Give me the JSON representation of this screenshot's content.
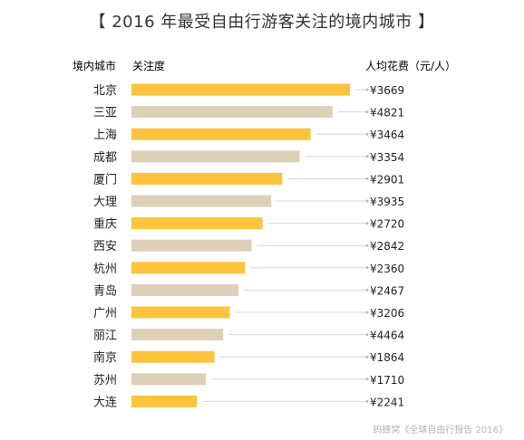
{
  "colors": {
    "primary_bar": "#FDC33D",
    "secondary_bar": "#DDD0B6",
    "leader_line": "#D6D6D6",
    "text": "#222222",
    "subtle_text": "#B5B5B5"
  },
  "chart_data": {
    "type": "bar",
    "orientation": "horizontal",
    "title": "【 2016 年最受自由行游客关注的境内城市 】",
    "category_header": "境内城市",
    "value_header": "关注度",
    "extra_header": "人均花费（元/人）",
    "categories": [
      "北京",
      "三亚",
      "上海",
      "成都",
      "厦门",
      "大理",
      "重庆",
      "西安",
      "杭州",
      "青岛",
      "广州",
      "丽江",
      "南京",
      "苏州",
      "大连"
    ],
    "values": [
      100,
      92,
      82,
      77,
      69,
      64,
      60,
      55,
      52,
      49,
      45,
      42,
      38,
      34,
      30
    ],
    "spending": [
      "¥3669",
      "¥4821",
      "¥3464",
      "¥3354",
      "¥2901",
      "¥3935",
      "¥2720",
      "¥2842",
      "¥2360",
      "¥2467",
      "¥3206",
      "¥4464",
      "¥1864",
      "¥1710",
      "¥2241"
    ],
    "color_pattern": [
      "primary",
      "secondary",
      "primary",
      "secondary",
      "primary",
      "secondary",
      "primary",
      "secondary",
      "primary",
      "secondary",
      "primary",
      "secondary",
      "primary",
      "secondary",
      "primary"
    ],
    "xlim": [
      0,
      100
    ],
    "grid": false,
    "legend": "none"
  },
  "source": "蚂蜂窝《全球自由行报告 2016》"
}
